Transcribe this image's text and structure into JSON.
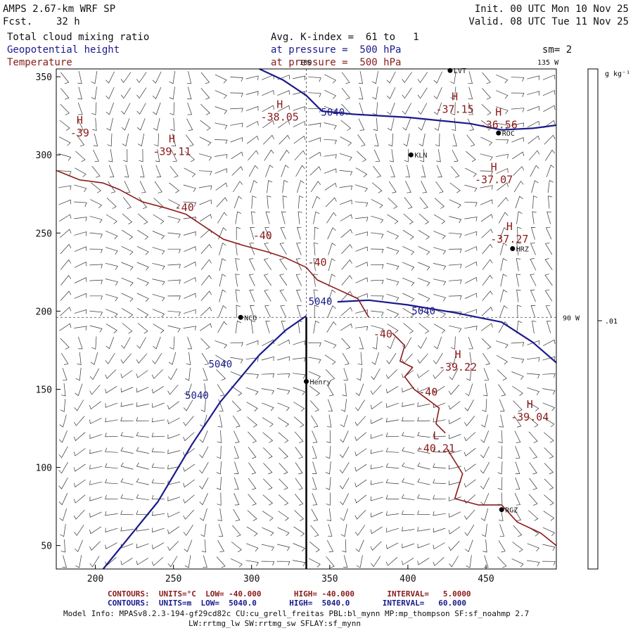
{
  "header": {
    "model": "AMPS 2.67-km WRF SP",
    "fcst_label": "Fcst.",
    "fcst_value": "32 h",
    "init": "Init. 00 UTC Mon 10 Nov 25",
    "valid": "Valid. 08 UTC Tue 11 Nov 25",
    "field1": "Total cloud mixing ratio",
    "field2": "Geopotential height",
    "field3": "Temperature",
    "avg_line": "Avg. K-index =  61 to   1",
    "pressure1": "at pressure =  500 hPa",
    "pressure2": "at pressure =  500 hPa",
    "sm": "sm= 2"
  },
  "colorbar": {
    "units": "g kg⁻¹",
    "tick": ".01"
  },
  "colors": {
    "height": "#1a1a8c",
    "temperature": "#8b1a1a",
    "text": "#111111",
    "axis": "#000000"
  },
  "chart_data": {
    "type": "contour_map",
    "title": "AMPS 2.67-km WRF SP",
    "xlim": [
      175,
      495
    ],
    "ylim": [
      35,
      355
    ],
    "x_ticks": [
      "200",
      "250",
      "300",
      "350",
      "400",
      "450"
    ],
    "y_ticks": [
      "50",
      "100",
      "150",
      "200",
      "250",
      "300",
      "350"
    ],
    "meridian_labels": [
      "180",
      "135 W",
      "90 W"
    ],
    "geopotential_height_contours": [
      {
        "label": "5040",
        "points": [
          [
            205,
            35
          ],
          [
            240,
            78
          ],
          [
            262,
            115
          ],
          [
            280,
            142
          ],
          [
            305,
            172
          ],
          [
            322,
            188
          ],
          [
            335,
            197
          ]
        ]
      },
      {
        "label": "5040",
        "points": [
          [
            355,
            206
          ],
          [
            375,
            207
          ],
          [
            400,
            204
          ],
          [
            430,
            199
          ],
          [
            460,
            193
          ],
          [
            480,
            180
          ],
          [
            495,
            167
          ]
        ]
      },
      {
        "label": "5040",
        "points": [
          [
            305,
            356
          ],
          [
            320,
            348
          ],
          [
            335,
            338
          ],
          [
            345,
            328
          ],
          [
            365,
            326
          ],
          [
            400,
            324
          ],
          [
            440,
            320
          ],
          [
            460,
            316
          ],
          [
            480,
            317
          ],
          [
            495,
            319
          ]
        ]
      }
    ],
    "height_labels": [
      {
        "text": "5040",
        "at": [
          344,
          204
        ]
      },
      {
        "text": "5040",
        "at": [
          410,
          198
        ]
      },
      {
        "text": "5040",
        "at": [
          352,
          325
        ]
      },
      {
        "text": "5040",
        "at": [
          280,
          164
        ]
      },
      {
        "text": "5040",
        "at": [
          265,
          144
        ]
      }
    ],
    "temperature_contours": [
      {
        "label": "-40",
        "points": [
          [
            175,
            290
          ],
          [
            190,
            284
          ],
          [
            205,
            282
          ],
          [
            215,
            278
          ],
          [
            230,
            270
          ],
          [
            245,
            266
          ],
          [
            258,
            262
          ],
          [
            270,
            254
          ],
          [
            282,
            246
          ],
          [
            295,
            242
          ],
          [
            310,
            238
          ],
          [
            322,
            234
          ],
          [
            335,
            228
          ]
        ]
      },
      {
        "label": "-40",
        "points": [
          [
            335,
            228
          ],
          [
            342,
            220
          ],
          [
            355,
            214
          ],
          [
            368,
            208
          ],
          [
            375,
            196
          ]
        ]
      },
      {
        "label": "-40",
        "points": [
          [
            390,
            186
          ],
          [
            398,
            178
          ],
          [
            395,
            168
          ],
          [
            403,
            164
          ],
          [
            398,
            158
          ],
          [
            404,
            150
          ],
          [
            412,
            144
          ],
          [
            420,
            138
          ],
          [
            418,
            128
          ],
          [
            424,
            122
          ]
        ]
      },
      {
        "label": "-40",
        "points": [
          [
            425,
            112
          ],
          [
            435,
            96
          ],
          [
            430,
            80
          ],
          [
            445,
            76
          ],
          [
            460,
            76
          ],
          [
            470,
            65
          ],
          [
            485,
            58
          ],
          [
            495,
            50
          ]
        ]
      }
    ],
    "temperature_labels": [
      {
        "text": "-40",
        "at": [
          257,
          264
        ]
      },
      {
        "text": "-40",
        "at": [
          307,
          246
        ]
      },
      {
        "text": "-40",
        "at": [
          342,
          229
        ]
      },
      {
        "text": "-40",
        "at": [
          384,
          183
        ]
      },
      {
        "text": "-40",
        "at": [
          413,
          146
        ]
      }
    ],
    "extrema": [
      {
        "type": "H",
        "value": "-39",
        "at": [
          190,
          320
        ]
      },
      {
        "type": "H",
        "value": "-39.11",
        "at": [
          249,
          308
        ]
      },
      {
        "type": "H",
        "value": "-38.05",
        "at": [
          318,
          330
        ]
      },
      {
        "type": "H",
        "value": "-37.15",
        "at": [
          430,
          335
        ]
      },
      {
        "type": "H",
        "value": "-36.56",
        "at": [
          458,
          325
        ]
      },
      {
        "type": "H",
        "value": "-37.07",
        "at": [
          455,
          290
        ]
      },
      {
        "type": "H",
        "value": "-37.27",
        "at": [
          465,
          252
        ]
      },
      {
        "type": "H",
        "value": "-39.22",
        "at": [
          432,
          170
        ]
      },
      {
        "type": "H",
        "value": "-39.04",
        "at": [
          478,
          138
        ]
      },
      {
        "type": "L",
        "value": "-40.21",
        "at": [
          418,
          118
        ]
      }
    ],
    "stations": [
      {
        "name": "NCO",
        "at": [
          293,
          196
        ]
      },
      {
        "name": "Henry",
        "at": [
          335,
          155
        ]
      },
      {
        "name": "KLN",
        "at": [
          402,
          300
        ]
      },
      {
        "name": "ROC",
        "at": [
          458,
          314
        ]
      },
      {
        "name": "HRZ",
        "at": [
          467,
          240
        ]
      },
      {
        "name": "RGZ",
        "at": [
          460,
          73
        ]
      },
      {
        "name": "LVT",
        "at": [
          427,
          354
        ]
      }
    ],
    "contour_legend": {
      "temperature": "CONTOURS:  UNITS=°C  LOW= -40.000       HIGH= -40.000       INTERVAL=   5.0000",
      "height": "CONTOURS:  UNITS=m  LOW=  5040.0       HIGH=  5040.0       INTERVAL=   60.000"
    }
  },
  "footer": {
    "info1": "Model Info: MPASv8.2.3-194-gf29cd82c CU:cu_grell_freitas PBL:bl_mynn MP:mp_thompson SF:sf_noahmp 2.7",
    "info2": "LW:rrtmg_lw SW:rrtmg_sw SFLAY:sf_mynn"
  }
}
